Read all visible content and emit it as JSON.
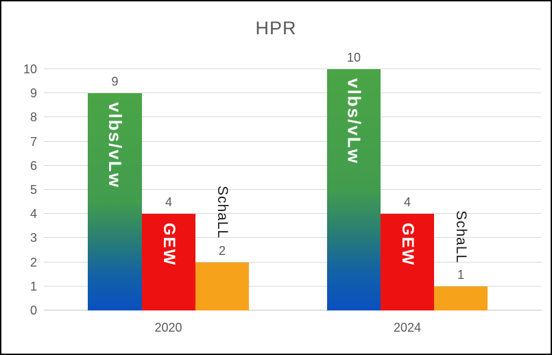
{
  "title": "HPR",
  "colors": {
    "title_text": "#595959",
    "axis_text": "#595959",
    "value_label_text": "#595959",
    "outside_label_text": "#1a1a1a",
    "gridline": "#d9d9d9",
    "bar_green_top": "#4aa546",
    "bar_blue_bottom": "#0a50c0",
    "bar_red": "#ee1111",
    "bar_orange": "#f7a21b",
    "inbar_label_text": "#ffffff",
    "border": "#000000"
  },
  "chart_data": {
    "type": "bar",
    "title": "HPR",
    "categories": [
      "2020",
      "2024"
    ],
    "series": [
      {
        "name": "vlbs/vLw",
        "values": [
          9,
          10
        ],
        "fill": "green-to-blue-gradient",
        "label_position": "inside-top-rotated"
      },
      {
        "name": "GEW",
        "values": [
          4,
          4
        ],
        "fill": "red",
        "label_position": "inside-top-rotated"
      },
      {
        "name": "SchaLL",
        "values": [
          2,
          1
        ],
        "fill": "orange",
        "label_position": "above-bar-rotated"
      }
    ],
    "value_labels_shown": [
      "9",
      "4",
      "2",
      "10",
      "4",
      "1"
    ],
    "xlabel": "",
    "ylabel": "",
    "ylim": [
      0,
      10
    ],
    "yticks": [
      0,
      1,
      2,
      3,
      4,
      5,
      6,
      7,
      8,
      9,
      10
    ],
    "grid": "horizontal",
    "legend": "none"
  }
}
